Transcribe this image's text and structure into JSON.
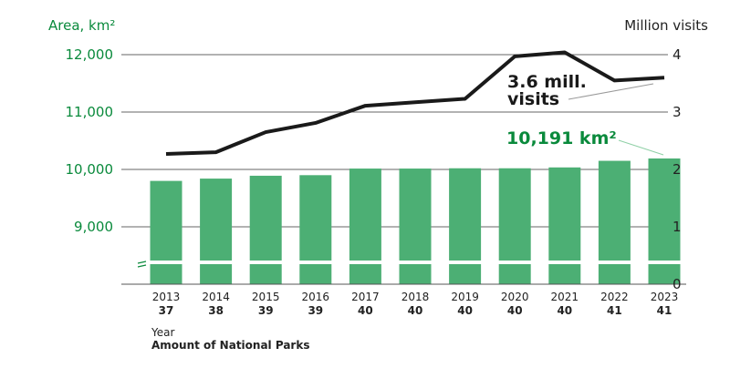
{
  "chart_data": {
    "type": "bar+line",
    "categories": [
      "2013",
      "2014",
      "2015",
      "2016",
      "2017",
      "2018",
      "2019",
      "2020",
      "2021",
      "2022",
      "2023"
    ],
    "parks": [
      "37",
      "38",
      "39",
      "39",
      "40",
      "40",
      "40",
      "40",
      "40",
      "41",
      "41"
    ],
    "series": [
      {
        "name": "Area, km²",
        "type": "bar",
        "axis": "left",
        "values": [
          9800,
          9840,
          9890,
          9900,
          10015,
          10015,
          10020,
          10020,
          10035,
          10150,
          10191
        ],
        "color": "#4caf74"
      },
      {
        "name": "Million visits",
        "type": "line",
        "axis": "right",
        "values": [
          2.27,
          2.3,
          2.65,
          2.81,
          3.11,
          3.17,
          3.23,
          3.97,
          4.04,
          3.55,
          3.6
        ],
        "color": "#1a1a1a"
      }
    ],
    "left_axis": {
      "label": "Area, km²",
      "range": [
        8000,
        12000
      ],
      "ticks": [
        "9,000",
        "10,000",
        "11,000",
        "12,000"
      ],
      "tick_values": [
        9000,
        10000,
        11000,
        12000
      ],
      "broken": true,
      "color": "#0a8a3c"
    },
    "right_axis": {
      "label": "Million visits",
      "range": [
        0,
        4
      ],
      "ticks": [
        "0",
        "1",
        "2",
        "3",
        "4"
      ],
      "tick_values": [
        0,
        1,
        2,
        3,
        4
      ]
    },
    "xlabel": "Year",
    "xlabel2": "Amount of National Parks",
    "annotations": {
      "visits": [
        "3.6 mill.",
        "visits"
      ],
      "area": "10,191 km²"
    },
    "grid": true
  }
}
